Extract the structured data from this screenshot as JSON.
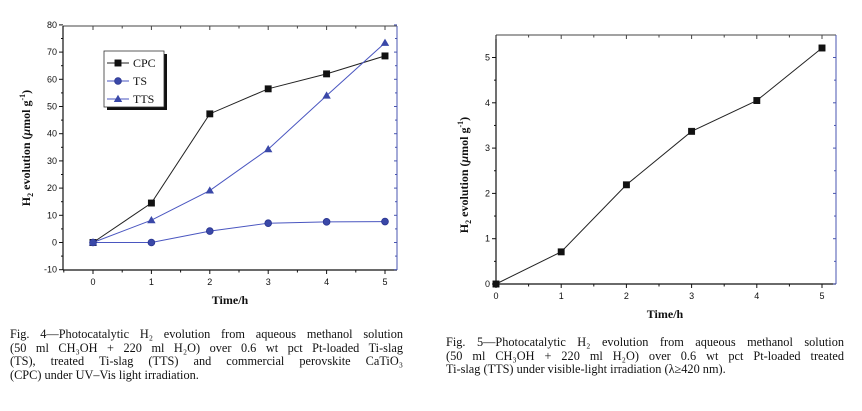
{
  "chart_data": [
    {
      "type": "line",
      "title": "",
      "xlabel": "Time/h",
      "ylabel": "H2 evolution (μmol g-1)",
      "xlim": [
        -0.5,
        5.2
      ],
      "ylim": [
        -10,
        80
      ],
      "x": [
        0,
        1,
        2,
        3,
        4,
        5
      ],
      "xticks": [
        "0",
        "1",
        "2",
        "3",
        "4",
        "5"
      ],
      "yticks": [
        "-10",
        "0",
        "10",
        "20",
        "30",
        "40",
        "50",
        "60",
        "70",
        "80"
      ],
      "ytick_values": [
        -10,
        0,
        10,
        20,
        30,
        40,
        50,
        60,
        70,
        80
      ],
      "legend_position": "top-left",
      "grid": false,
      "series": [
        {
          "name": "CPC",
          "marker": "square",
          "color": "#111111",
          "values": [
            0,
            14.5,
            47.3,
            56.5,
            62.0,
            68.6
          ]
        },
        {
          "name": "TS",
          "marker": "circle",
          "color": "#3a48a8",
          "values": [
            0,
            0,
            4.2,
            7.1,
            7.6,
            7.7
          ]
        },
        {
          "name": "TTS",
          "marker": "triangle",
          "color": "#3a48a8",
          "values": [
            0,
            8.2,
            19.1,
            34.3,
            54.0,
            73.4
          ]
        }
      ]
    },
    {
      "type": "line",
      "title": "",
      "xlabel": "Time/h",
      "ylabel": "H2 evolution (μmol g-1)",
      "xlim": [
        0,
        5.2
      ],
      "ylim": [
        0,
        5.5
      ],
      "x": [
        0,
        1,
        2,
        3,
        4,
        5
      ],
      "xticks": [
        "0",
        "1",
        "2",
        "3",
        "4",
        "5"
      ],
      "yticks": [
        "0",
        "1",
        "2",
        "3",
        "4",
        "5"
      ],
      "ytick_values": [
        0,
        1,
        2,
        3,
        4,
        5
      ],
      "grid": false,
      "series": [
        {
          "name": "TTS",
          "marker": "square",
          "color": "#111111",
          "values": [
            0,
            0.71,
            2.19,
            3.37,
            4.05,
            5.21
          ]
        }
      ]
    }
  ],
  "captions": {
    "fig4": {
      "line1": "Fig. 4—Photocatalytic H₂ evolution from aqueous methanol solution",
      "line2": "(50 ml  CH₃OH + 220 ml  H₂O)  over  0.6 wt pct  Pt-loaded  Ti-slag",
      "line3": "(TS),  treated  Ti-slag  (TTS)  and  commercial  perovskite  CaTiO₃",
      "line4": "(CPC) under UV–Vis light irradiation."
    },
    "fig5": {
      "line1": "Fig. 5—Photocatalytic H₂ evolution from aqueous methanol solution",
      "line2": "(50 ml  CH₃OH + 220 ml  H₂O)  over  0.6 wt pct  Pt-loaded  treated",
      "line3": "Ti-slag (TTS) under visible-light irradiation (λ≥420 nm)."
    }
  }
}
